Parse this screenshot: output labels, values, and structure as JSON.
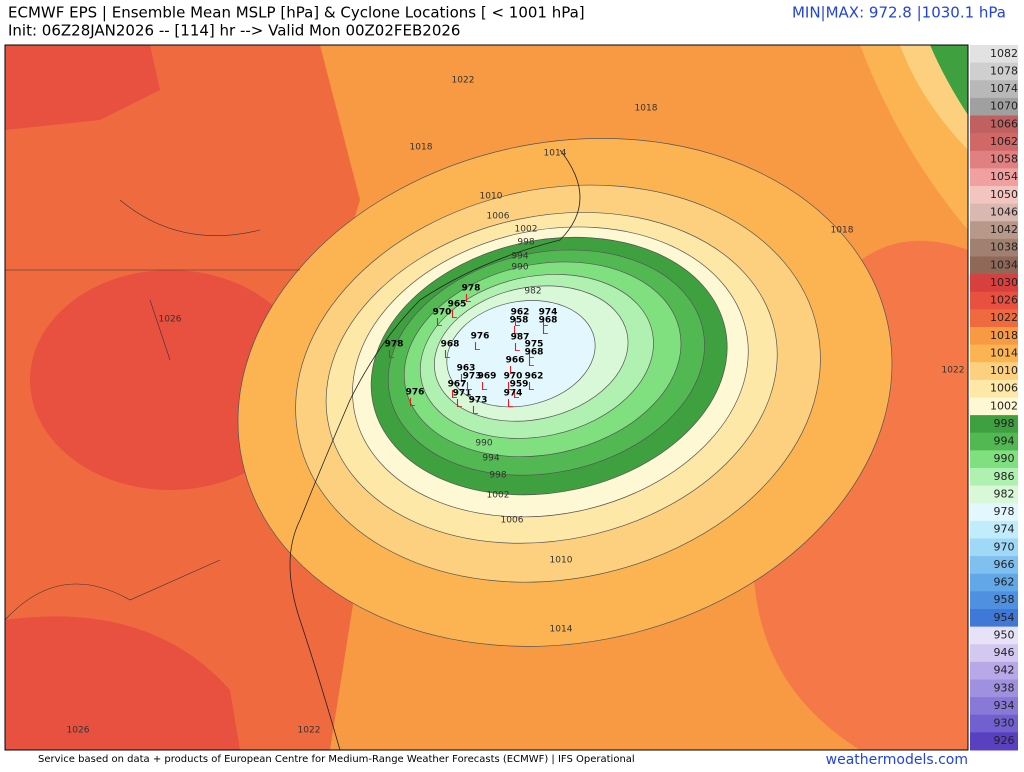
{
  "header": {
    "title": "ECMWF EPS | Ensemble Mean MSLP [hPa] & Cyclone Locations [ < 1001 hPa]",
    "subtitle": "Init: 06Z28JAN2026 -- [114] hr --> Valid Mon 00Z02FEB2026",
    "minmax": "MIN|MAX: 972.8 |1030.1 hPa"
  },
  "colorbar": {
    "labels": [
      1082,
      1078,
      1074,
      1070,
      1066,
      1062,
      1058,
      1054,
      1050,
      1046,
      1042,
      1038,
      1034,
      1030,
      1026,
      1022,
      1018,
      1014,
      1010,
      1006,
      1002,
      998,
      994,
      990,
      986,
      982,
      978,
      974,
      970,
      966,
      962,
      958,
      954,
      950,
      946,
      942,
      938,
      934,
      930,
      926
    ],
    "colors": [
      "#e2e2e2",
      "#cfcfcf",
      "#b8b8b8",
      "#a0a0a0",
      "#c06060",
      "#d06868",
      "#e08080",
      "#f0a0a0",
      "#f4c4c0",
      "#d8b8b0",
      "#b89888",
      "#a08070",
      "#906858",
      "#d84040",
      "#e85040",
      "#f06a40",
      "#f89a44",
      "#fcb452",
      "#fdd080",
      "#fee8a8",
      "#fff8d4",
      "#3fa040",
      "#52b852",
      "#80e080",
      "#b0f0b0",
      "#d8f8d8",
      "#e2f8fe",
      "#c0ecfc",
      "#a0d8f8",
      "#80c0f0",
      "#62a8e8",
      "#5090e0",
      "#4078d8",
      "#e8e2f8",
      "#d2c8f0",
      "#b8a8e8",
      "#a090e0",
      "#8878d8",
      "#7060d0",
      "#5840c0"
    ]
  },
  "contour_labels": [
    1022,
    1018,
    1018,
    1014,
    1010,
    1006,
    1002,
    998,
    994,
    990,
    982,
    1026,
    1018,
    1022,
    990,
    994,
    998,
    1002,
    1006,
    1010,
    1014,
    1026,
    1022
  ],
  "marker_symbol": "L",
  "cyclone_labels": [
    978,
    965,
    970,
    962,
    974,
    968,
    958,
    978,
    976,
    987,
    975,
    968,
    963,
    962,
    959,
    974,
    967,
    971,
    973,
    970,
    966,
    968,
    973,
    969,
    976
  ],
  "footer": {
    "credit": "Service based on data + products of European Centre for Medium-Range Weather Forecasts (ECMWF) | IFS Operational",
    "site": "weathermodels.com"
  }
}
